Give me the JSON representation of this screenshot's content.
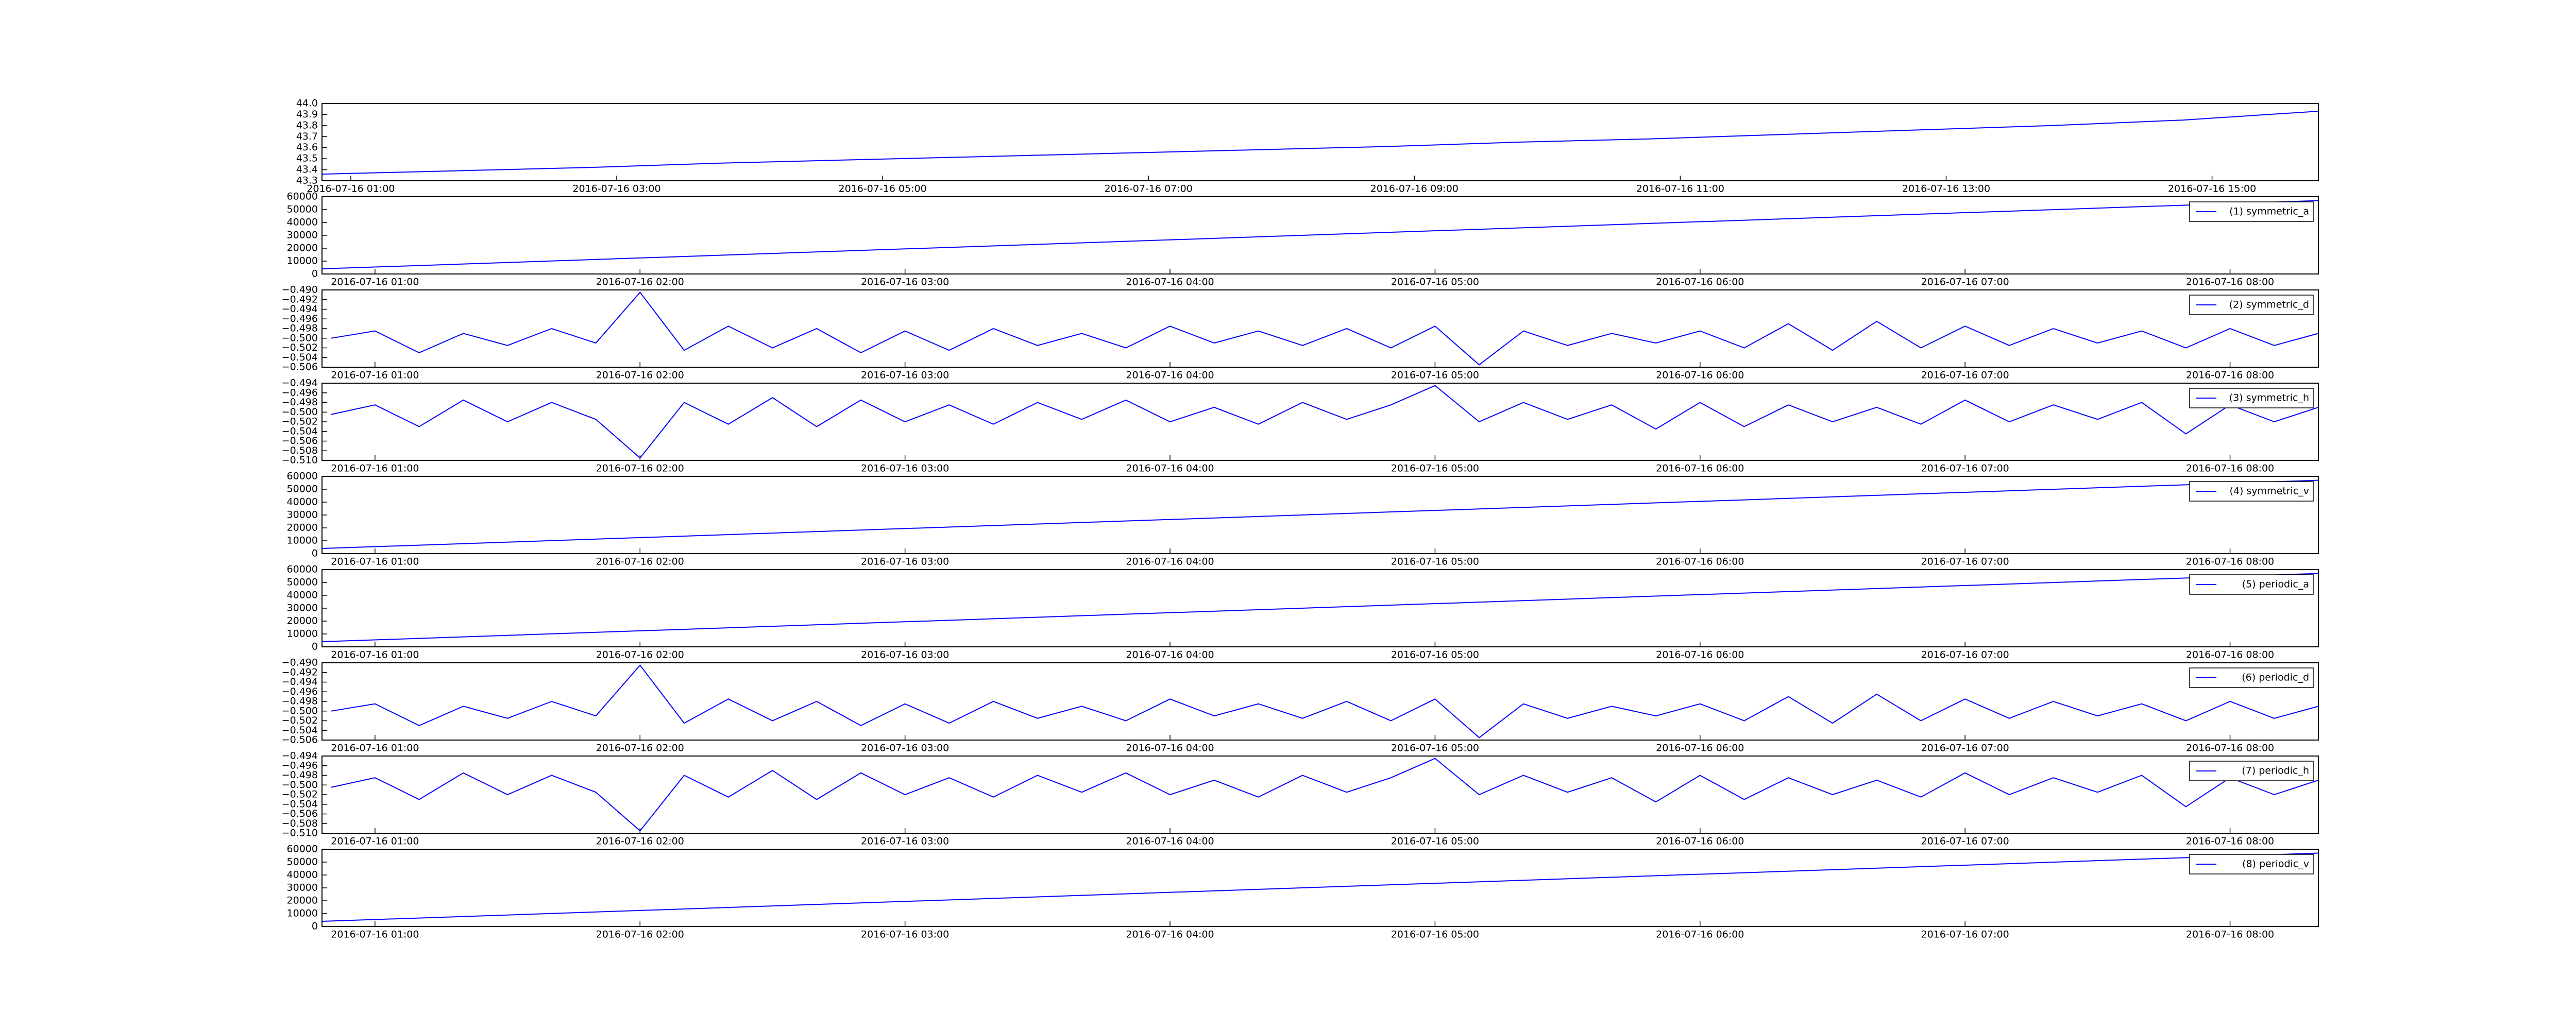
{
  "chart_data": [
    {
      "type": "line",
      "x": [
        "2016-07-16 00:47",
        "2016-07-16 01:47",
        "2016-07-16 02:47",
        "2016-07-16 03:47",
        "2016-07-16 04:47",
        "2016-07-16 05:47",
        "2016-07-16 06:47",
        "2016-07-16 07:47",
        "2016-07-16 08:47",
        "2016-07-16 09:47",
        "2016-07-16 10:47",
        "2016-07-16 11:47",
        "2016-07-16 12:47",
        "2016-07-16 13:47",
        "2016-07-16 14:47",
        "2016-07-16 15:48"
      ],
      "series": [
        {
          "color": "#0000ff",
          "values": [
            43.36,
            43.39,
            43.42,
            43.46,
            43.49,
            43.52,
            43.55,
            43.58,
            43.61,
            43.65,
            43.68,
            43.72,
            43.76,
            43.8,
            43.85,
            43.93
          ]
        }
      ],
      "xlim": [
        "2016-07-16 00:47",
        "2016-07-16 15:48"
      ],
      "xticks": [
        "2016-07-16 01:00",
        "2016-07-16 03:00",
        "2016-07-16 05:00",
        "2016-07-16 07:00",
        "2016-07-16 09:00",
        "2016-07-16 11:00",
        "2016-07-16 13:00",
        "2016-07-16 15:00"
      ],
      "ylim": [
        43.3,
        44.0
      ],
      "yticks": [
        43.3,
        43.4,
        43.5,
        43.6,
        43.7,
        43.8,
        43.9,
        {
          "value": 44.0,
          "label": "44.0"
        }
      ]
    },
    {
      "type": "line",
      "x": [
        "2016-07-16 00:48",
        "2016-07-16 08:20"
      ],
      "series": [
        {
          "name": "(1) symmetric_a",
          "color": "#0000ff",
          "values": [
            4000,
            57000
          ]
        }
      ],
      "xlim": [
        "2016-07-16 00:48",
        "2016-07-16 08:20"
      ],
      "xticks": [
        "2016-07-16 01:00",
        "2016-07-16 02:00",
        "2016-07-16 03:00",
        "2016-07-16 04:00",
        "2016-07-16 05:00",
        "2016-07-16 06:00",
        "2016-07-16 07:00",
        "2016-07-16 08:00"
      ],
      "ylim": [
        0,
        60000
      ],
      "yticks": [
        0,
        10000,
        20000,
        30000,
        40000,
        50000,
        60000
      ]
    },
    {
      "type": "line",
      "x": [
        "2016-07-16 00:50",
        "2016-07-16 01:00",
        "2016-07-16 01:10",
        "2016-07-16 01:20",
        "2016-07-16 01:30",
        "2016-07-16 01:40",
        "2016-07-16 01:50",
        "2016-07-16 02:00",
        "2016-07-16 02:10",
        "2016-07-16 02:20",
        "2016-07-16 02:30",
        "2016-07-16 02:40",
        "2016-07-16 02:50",
        "2016-07-16 03:00",
        "2016-07-16 03:10",
        "2016-07-16 03:20",
        "2016-07-16 03:30",
        "2016-07-16 03:40",
        "2016-07-16 03:50",
        "2016-07-16 04:00",
        "2016-07-16 04:10",
        "2016-07-16 04:20",
        "2016-07-16 04:30",
        "2016-07-16 04:40",
        "2016-07-16 04:50",
        "2016-07-16 05:00",
        "2016-07-16 05:10",
        "2016-07-16 05:20",
        "2016-07-16 05:30",
        "2016-07-16 05:40",
        "2016-07-16 05:50",
        "2016-07-16 06:00",
        "2016-07-16 06:10",
        "2016-07-16 06:20",
        "2016-07-16 06:30",
        "2016-07-16 06:40",
        "2016-07-16 06:50",
        "2016-07-16 07:00",
        "2016-07-16 07:10",
        "2016-07-16 07:20",
        "2016-07-16 07:30",
        "2016-07-16 07:40",
        "2016-07-16 07:50",
        "2016-07-16 08:00",
        "2016-07-16 08:10",
        "2016-07-16 08:20"
      ],
      "series": [
        {
          "name": "(2) symmetric_d",
          "color": "#0000ff",
          "values": [
            -0.5,
            -0.4985,
            -0.503,
            -0.499,
            -0.5015,
            -0.498,
            -0.501,
            -0.4905,
            -0.5025,
            -0.4975,
            -0.502,
            -0.498,
            -0.503,
            -0.4985,
            -0.5025,
            -0.498,
            -0.5015,
            -0.499,
            -0.502,
            -0.4975,
            -0.501,
            -0.4985,
            -0.5015,
            -0.498,
            -0.502,
            -0.4975,
            -0.5055,
            -0.4985,
            -0.5015,
            -0.499,
            -0.501,
            -0.4985,
            -0.502,
            -0.497,
            -0.5025,
            -0.4965,
            -0.502,
            -0.4975,
            -0.5015,
            -0.498,
            -0.501,
            -0.4985,
            -0.502,
            -0.498,
            -0.5015,
            -0.499
          ]
        }
      ],
      "xlim": [
        "2016-07-16 00:48",
        "2016-07-16 08:20"
      ],
      "xticks": [
        "2016-07-16 01:00",
        "2016-07-16 02:00",
        "2016-07-16 03:00",
        "2016-07-16 04:00",
        "2016-07-16 05:00",
        "2016-07-16 06:00",
        "2016-07-16 07:00",
        "2016-07-16 08:00"
      ],
      "ylim": [
        -0.506,
        -0.49
      ],
      "yticks": [
        {
          "value": -0.506,
          "label": "−0.506"
        },
        {
          "value": -0.504,
          "label": "−0.504"
        },
        {
          "value": -0.502,
          "label": "−0.502"
        },
        {
          "value": -0.5,
          "label": "−0.500"
        },
        {
          "value": -0.498,
          "label": "−0.498"
        },
        {
          "value": -0.496,
          "label": "−0.496"
        },
        {
          "value": -0.494,
          "label": "−0.494"
        },
        {
          "value": -0.492,
          "label": "−0.492"
        },
        {
          "value": -0.49,
          "label": "−0.490"
        }
      ]
    },
    {
      "type": "line",
      "x": [
        "2016-07-16 00:50",
        "2016-07-16 01:00",
        "2016-07-16 01:10",
        "2016-07-16 01:20",
        "2016-07-16 01:30",
        "2016-07-16 01:40",
        "2016-07-16 01:50",
        "2016-07-16 02:00",
        "2016-07-16 02:10",
        "2016-07-16 02:20",
        "2016-07-16 02:30",
        "2016-07-16 02:40",
        "2016-07-16 02:50",
        "2016-07-16 03:00",
        "2016-07-16 03:10",
        "2016-07-16 03:20",
        "2016-07-16 03:30",
        "2016-07-16 03:40",
        "2016-07-16 03:50",
        "2016-07-16 04:00",
        "2016-07-16 04:10",
        "2016-07-16 04:20",
        "2016-07-16 04:30",
        "2016-07-16 04:40",
        "2016-07-16 04:50",
        "2016-07-16 05:00",
        "2016-07-16 05:10",
        "2016-07-16 05:20",
        "2016-07-16 05:30",
        "2016-07-16 05:40",
        "2016-07-16 05:50",
        "2016-07-16 06:00",
        "2016-07-16 06:10",
        "2016-07-16 06:20",
        "2016-07-16 06:30",
        "2016-07-16 06:40",
        "2016-07-16 06:50",
        "2016-07-16 07:00",
        "2016-07-16 07:10",
        "2016-07-16 07:20",
        "2016-07-16 07:30",
        "2016-07-16 07:40",
        "2016-07-16 07:50",
        "2016-07-16 08:00",
        "2016-07-16 08:10",
        "2016-07-16 08:20"
      ],
      "series": [
        {
          "name": "(3) symmetric_h",
          "color": "#0000ff",
          "values": [
            -0.5005,
            -0.4985,
            -0.503,
            -0.4975,
            -0.502,
            -0.498,
            -0.5015,
            -0.5095,
            -0.498,
            -0.5025,
            -0.497,
            -0.503,
            -0.4975,
            -0.502,
            -0.4985,
            -0.5025,
            -0.498,
            -0.5015,
            -0.4975,
            -0.502,
            -0.499,
            -0.5025,
            -0.498,
            -0.5015,
            -0.4985,
            -0.4945,
            -0.502,
            -0.498,
            -0.5015,
            -0.4985,
            -0.5035,
            -0.498,
            -0.503,
            -0.4985,
            -0.502,
            -0.499,
            -0.5025,
            -0.4975,
            -0.502,
            -0.4985,
            -0.5015,
            -0.498,
            -0.5045,
            -0.4985,
            -0.502,
            -0.499
          ]
        }
      ],
      "xlim": [
        "2016-07-16 00:48",
        "2016-07-16 08:20"
      ],
      "xticks": [
        "2016-07-16 01:00",
        "2016-07-16 02:00",
        "2016-07-16 03:00",
        "2016-07-16 04:00",
        "2016-07-16 05:00",
        "2016-07-16 06:00",
        "2016-07-16 07:00",
        "2016-07-16 08:00"
      ],
      "ylim": [
        -0.51,
        -0.494
      ],
      "yticks": [
        {
          "value": -0.51,
          "label": "−0.510"
        },
        {
          "value": -0.508,
          "label": "−0.508"
        },
        {
          "value": -0.506,
          "label": "−0.506"
        },
        {
          "value": -0.504,
          "label": "−0.504"
        },
        {
          "value": -0.502,
          "label": "−0.502"
        },
        {
          "value": -0.5,
          "label": "−0.500"
        },
        {
          "value": -0.498,
          "label": "−0.498"
        },
        {
          "value": -0.496,
          "label": "−0.496"
        },
        {
          "value": -0.494,
          "label": "−0.494"
        }
      ]
    },
    {
      "type": "line",
      "x": [
        "2016-07-16 00:48",
        "2016-07-16 08:20"
      ],
      "series": [
        {
          "name": "(4) symmetric_v",
          "color": "#0000ff",
          "values": [
            4000,
            57000
          ]
        }
      ],
      "xlim": [
        "2016-07-16 00:48",
        "2016-07-16 08:20"
      ],
      "xticks": [
        "2016-07-16 01:00",
        "2016-07-16 02:00",
        "2016-07-16 03:00",
        "2016-07-16 04:00",
        "2016-07-16 05:00",
        "2016-07-16 06:00",
        "2016-07-16 07:00",
        "2016-07-16 08:00"
      ],
      "ylim": [
        0,
        60000
      ],
      "yticks": [
        0,
        10000,
        20000,
        30000,
        40000,
        50000,
        60000
      ]
    },
    {
      "type": "line",
      "x": [
        "2016-07-16 00:48",
        "2016-07-16 08:20"
      ],
      "series": [
        {
          "name": "(5) periodic_a",
          "color": "#0000ff",
          "values": [
            4000,
            57000
          ]
        }
      ],
      "xlim": [
        "2016-07-16 00:48",
        "2016-07-16 08:20"
      ],
      "xticks": [
        "2016-07-16 01:00",
        "2016-07-16 02:00",
        "2016-07-16 03:00",
        "2016-07-16 04:00",
        "2016-07-16 05:00",
        "2016-07-16 06:00",
        "2016-07-16 07:00",
        "2016-07-16 08:00"
      ],
      "ylim": [
        0,
        60000
      ],
      "yticks": [
        0,
        10000,
        20000,
        30000,
        40000,
        50000,
        60000
      ]
    },
    {
      "type": "line",
      "x": [
        "2016-07-16 00:50",
        "2016-07-16 01:00",
        "2016-07-16 01:10",
        "2016-07-16 01:20",
        "2016-07-16 01:30",
        "2016-07-16 01:40",
        "2016-07-16 01:50",
        "2016-07-16 02:00",
        "2016-07-16 02:10",
        "2016-07-16 02:20",
        "2016-07-16 02:30",
        "2016-07-16 02:40",
        "2016-07-16 02:50",
        "2016-07-16 03:00",
        "2016-07-16 03:10",
        "2016-07-16 03:20",
        "2016-07-16 03:30",
        "2016-07-16 03:40",
        "2016-07-16 03:50",
        "2016-07-16 04:00",
        "2016-07-16 04:10",
        "2016-07-16 04:20",
        "2016-07-16 04:30",
        "2016-07-16 04:40",
        "2016-07-16 04:50",
        "2016-07-16 05:00",
        "2016-07-16 05:10",
        "2016-07-16 05:20",
        "2016-07-16 05:30",
        "2016-07-16 05:40",
        "2016-07-16 05:50",
        "2016-07-16 06:00",
        "2016-07-16 06:10",
        "2016-07-16 06:20",
        "2016-07-16 06:30",
        "2016-07-16 06:40",
        "2016-07-16 06:50",
        "2016-07-16 07:00",
        "2016-07-16 07:10",
        "2016-07-16 07:20",
        "2016-07-16 07:30",
        "2016-07-16 07:40",
        "2016-07-16 07:50",
        "2016-07-16 08:00",
        "2016-07-16 08:10",
        "2016-07-16 08:20"
      ],
      "series": [
        {
          "name": "(6) periodic_d",
          "color": "#0000ff",
          "values": [
            -0.5,
            -0.4985,
            -0.503,
            -0.499,
            -0.5015,
            -0.498,
            -0.501,
            -0.4905,
            -0.5025,
            -0.4975,
            -0.502,
            -0.498,
            -0.503,
            -0.4985,
            -0.5025,
            -0.498,
            -0.5015,
            -0.499,
            -0.502,
            -0.4975,
            -0.501,
            -0.4985,
            -0.5015,
            -0.498,
            -0.502,
            -0.4975,
            -0.5055,
            -0.4985,
            -0.5015,
            -0.499,
            -0.501,
            -0.4985,
            -0.502,
            -0.497,
            -0.5025,
            -0.4965,
            -0.502,
            -0.4975,
            -0.5015,
            -0.498,
            -0.501,
            -0.4985,
            -0.502,
            -0.498,
            -0.5015,
            -0.499
          ]
        }
      ],
      "xlim": [
        "2016-07-16 00:48",
        "2016-07-16 08:20"
      ],
      "xticks": [
        "2016-07-16 01:00",
        "2016-07-16 02:00",
        "2016-07-16 03:00",
        "2016-07-16 04:00",
        "2016-07-16 05:00",
        "2016-07-16 06:00",
        "2016-07-16 07:00",
        "2016-07-16 08:00"
      ],
      "ylim": [
        -0.506,
        -0.49
      ],
      "yticks": [
        {
          "value": -0.506,
          "label": "−0.506"
        },
        {
          "value": -0.504,
          "label": "−0.504"
        },
        {
          "value": -0.502,
          "label": "−0.502"
        },
        {
          "value": -0.5,
          "label": "−0.500"
        },
        {
          "value": -0.498,
          "label": "−0.498"
        },
        {
          "value": -0.496,
          "label": "−0.496"
        },
        {
          "value": -0.494,
          "label": "−0.494"
        },
        {
          "value": -0.492,
          "label": "−0.492"
        },
        {
          "value": -0.49,
          "label": "−0.490"
        }
      ]
    },
    {
      "type": "line",
      "x": [
        "2016-07-16 00:50",
        "2016-07-16 01:00",
        "2016-07-16 01:10",
        "2016-07-16 01:20",
        "2016-07-16 01:30",
        "2016-07-16 01:40",
        "2016-07-16 01:50",
        "2016-07-16 02:00",
        "2016-07-16 02:10",
        "2016-07-16 02:20",
        "2016-07-16 02:30",
        "2016-07-16 02:40",
        "2016-07-16 02:50",
        "2016-07-16 03:00",
        "2016-07-16 03:10",
        "2016-07-16 03:20",
        "2016-07-16 03:30",
        "2016-07-16 03:40",
        "2016-07-16 03:50",
        "2016-07-16 04:00",
        "2016-07-16 04:10",
        "2016-07-16 04:20",
        "2016-07-16 04:30",
        "2016-07-16 04:40",
        "2016-07-16 04:50",
        "2016-07-16 05:00",
        "2016-07-16 05:10",
        "2016-07-16 05:20",
        "2016-07-16 05:30",
        "2016-07-16 05:40",
        "2016-07-16 05:50",
        "2016-07-16 06:00",
        "2016-07-16 06:10",
        "2016-07-16 06:20",
        "2016-07-16 06:30",
        "2016-07-16 06:40",
        "2016-07-16 06:50",
        "2016-07-16 07:00",
        "2016-07-16 07:10",
        "2016-07-16 07:20",
        "2016-07-16 07:30",
        "2016-07-16 07:40",
        "2016-07-16 07:50",
        "2016-07-16 08:00",
        "2016-07-16 08:10",
        "2016-07-16 08:20"
      ],
      "series": [
        {
          "name": "(7) periodic_h",
          "color": "#0000ff",
          "values": [
            -0.5005,
            -0.4985,
            -0.503,
            -0.4975,
            -0.502,
            -0.498,
            -0.5015,
            -0.5095,
            -0.498,
            -0.5025,
            -0.497,
            -0.503,
            -0.4975,
            -0.502,
            -0.4985,
            -0.5025,
            -0.498,
            -0.5015,
            -0.4975,
            -0.502,
            -0.499,
            -0.5025,
            -0.498,
            -0.5015,
            -0.4985,
            -0.4945,
            -0.502,
            -0.498,
            -0.5015,
            -0.4985,
            -0.5035,
            -0.498,
            -0.503,
            -0.4985,
            -0.502,
            -0.499,
            -0.5025,
            -0.4975,
            -0.502,
            -0.4985,
            -0.5015,
            -0.498,
            -0.5045,
            -0.4985,
            -0.502,
            -0.499
          ]
        }
      ],
      "xlim": [
        "2016-07-16 00:48",
        "2016-07-16 08:20"
      ],
      "xticks": [
        "2016-07-16 01:00",
        "2016-07-16 02:00",
        "2016-07-16 03:00",
        "2016-07-16 04:00",
        "2016-07-16 05:00",
        "2016-07-16 06:00",
        "2016-07-16 07:00",
        "2016-07-16 08:00"
      ],
      "ylim": [
        -0.51,
        -0.494
      ],
      "yticks": [
        {
          "value": -0.51,
          "label": "−0.510"
        },
        {
          "value": -0.508,
          "label": "−0.508"
        },
        {
          "value": -0.506,
          "label": "−0.506"
        },
        {
          "value": -0.504,
          "label": "−0.504"
        },
        {
          "value": -0.502,
          "label": "−0.502"
        },
        {
          "value": -0.5,
          "label": "−0.500"
        },
        {
          "value": -0.498,
          "label": "−0.498"
        },
        {
          "value": -0.496,
          "label": "−0.496"
        },
        {
          "value": -0.494,
          "label": "−0.494"
        }
      ]
    },
    {
      "type": "line",
      "x": [
        "2016-07-16 00:48",
        "2016-07-16 08:20"
      ],
      "series": [
        {
          "name": "(8) periodic_v",
          "color": "#0000ff",
          "values": [
            4000,
            57000
          ]
        }
      ],
      "xlim": [
        "2016-07-16 00:48",
        "2016-07-16 08:20"
      ],
      "xticks": [
        "2016-07-16 01:00",
        "2016-07-16 02:00",
        "2016-07-16 03:00",
        "2016-07-16 04:00",
        "2016-07-16 05:00",
        "2016-07-16 06:00",
        "2016-07-16 07:00",
        "2016-07-16 08:00"
      ],
      "ylim": [
        0,
        60000
      ],
      "yticks": [
        0,
        10000,
        20000,
        30000,
        40000,
        50000,
        60000
      ]
    }
  ]
}
